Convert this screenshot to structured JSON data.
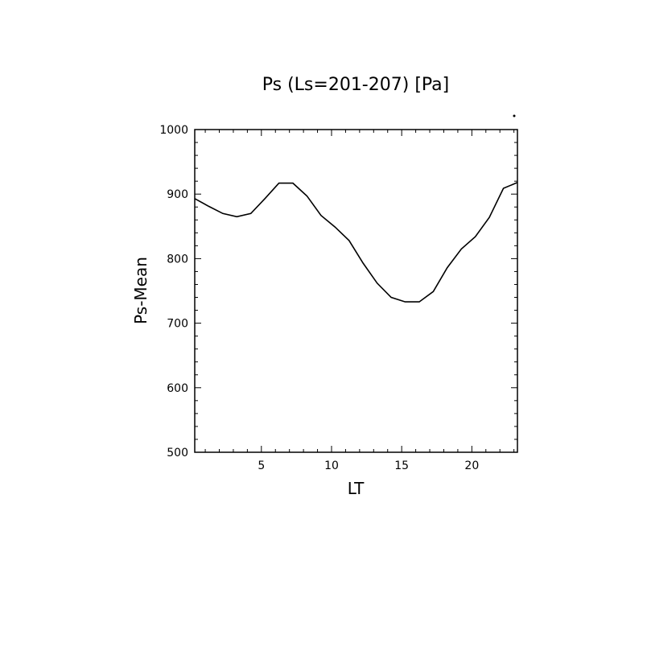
{
  "chart_data": {
    "type": "line",
    "title": "Ps (Ls=201-207) [Pa]",
    "xlabel": "LT",
    "ylabel": "Ps-Mean",
    "xlim": [
      0.25,
      23.25
    ],
    "ylim": [
      500,
      1000
    ],
    "x_ticks": [
      5,
      10,
      15,
      20
    ],
    "y_ticks": [
      500,
      600,
      700,
      800,
      900,
      1000
    ],
    "grid": false,
    "series": [
      {
        "x": [
          0.25,
          1.25,
          2.25,
          3.25,
          4.25,
          5.25,
          6.25,
          7.25,
          8.25,
          9.25,
          10.25,
          11.25,
          12.25,
          13.25,
          14.25,
          15.25,
          16.25,
          17.25,
          18.25,
          19.25,
          20.25,
          21.25,
          22.25,
          23.25
        ],
        "y": [
          893,
          881,
          870,
          865,
          870,
          893,
          917,
          917,
          897,
          867,
          849,
          828,
          793,
          762,
          740,
          733,
          733,
          749,
          786,
          815,
          834,
          864,
          909,
          918
        ]
      }
    ],
    "line_color": "#000000"
  }
}
